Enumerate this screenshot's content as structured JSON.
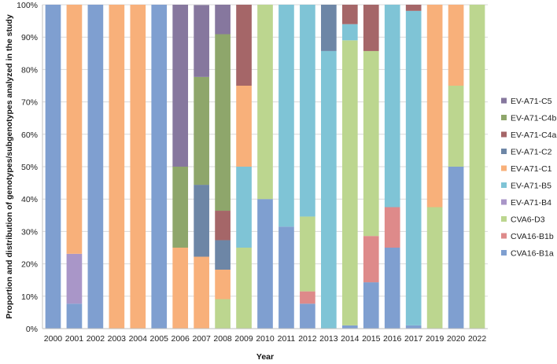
{
  "chart_data": {
    "type": "stacked_bar",
    "title": "",
    "xlabel": "Year",
    "ylabel": "Proportion and distribution of genotypes/subgenotypes analyzed in the study",
    "ylim": [
      0,
      100
    ],
    "y_ticks": [
      "0%",
      "10%",
      "20%",
      "30%",
      "40%",
      "50%",
      "60%",
      "70%",
      "80%",
      "90%",
      "100%"
    ],
    "grid": true,
    "legend_position": "right",
    "categories": [
      "2000",
      "2001",
      "2002",
      "2003",
      "2004",
      "2005",
      "2006",
      "2007",
      "2008",
      "2009",
      "2010",
      "2011",
      "2012",
      "2013",
      "2014",
      "2015",
      "2016",
      "2017",
      "2019",
      "2020",
      "2022"
    ],
    "series": [
      {
        "name": "CVA16-B1a",
        "color": "#7f9fd0",
        "values": [
          100,
          7.7,
          100,
          0,
          0,
          100,
          0,
          0,
          0,
          0,
          40,
          31.5,
          7.7,
          0,
          1,
          14.3,
          25,
          1,
          0,
          50,
          0
        ]
      },
      {
        "name": "CVA16-B1b",
        "color": "#de8a8a",
        "values": [
          0,
          0,
          0,
          0,
          0,
          0,
          0,
          0,
          0,
          0,
          0,
          0,
          3.8,
          0,
          0,
          14.3,
          12.5,
          0,
          0,
          0,
          0
        ]
      },
      {
        "name": "CVA6-D3",
        "color": "#bcd68f",
        "values": [
          0,
          0,
          0,
          0,
          0,
          0,
          0,
          0,
          9.1,
          25,
          60,
          0,
          23.1,
          0,
          88,
          57.1,
          0,
          0,
          37.5,
          25,
          100
        ]
      },
      {
        "name": "EV-A71-B4",
        "color": "#a996c8",
        "values": [
          0,
          15.4,
          0,
          0,
          0,
          0,
          0,
          0,
          0,
          0,
          0,
          0,
          0,
          0,
          0,
          0,
          0,
          0,
          0,
          0,
          0
        ]
      },
      {
        "name": "EV-A71-B5",
        "color": "#7fc4d6",
        "values": [
          0,
          0,
          0,
          0,
          0,
          0,
          0,
          0,
          0,
          25,
          0,
          68.5,
          65.4,
          85.7,
          5,
          0,
          62.5,
          97.1,
          0,
          0,
          0
        ]
      },
      {
        "name": "EV-A71-C1",
        "color": "#f8b07a",
        "values": [
          0,
          76.9,
          0,
          100,
          100,
          0,
          25,
          22.2,
          9.1,
          25,
          0,
          0,
          0,
          0,
          0,
          0,
          0,
          0,
          62.5,
          25,
          0
        ]
      },
      {
        "name": "EV-A71-C2",
        "color": "#6d86a6",
        "values": [
          0,
          0,
          0,
          0,
          0,
          0,
          0,
          22.2,
          9.1,
          0,
          0,
          0,
          0,
          14.3,
          0,
          0,
          0,
          0,
          0,
          0,
          0
        ]
      },
      {
        "name": "EV-A71-C4a",
        "color": "#a56668",
        "values": [
          0,
          0,
          0,
          0,
          0,
          0,
          0,
          0,
          9.1,
          25,
          0,
          0,
          0,
          0,
          6,
          14.3,
          0,
          1.9,
          0,
          0,
          0
        ]
      },
      {
        "name": "EV-A71-C4b",
        "color": "#8ea66b",
        "values": [
          0,
          0,
          0,
          0,
          0,
          0,
          25,
          33.3,
          54.5,
          0,
          0,
          0,
          0,
          0,
          0,
          0,
          0,
          0,
          0,
          0,
          0
        ]
      },
      {
        "name": "EV-A71-C5",
        "color": "#86779e",
        "values": [
          0,
          0,
          0,
          0,
          0,
          0,
          50,
          22.2,
          9.1,
          0,
          0,
          0,
          0,
          0,
          0,
          0,
          0,
          0,
          0,
          0,
          0
        ]
      }
    ]
  }
}
